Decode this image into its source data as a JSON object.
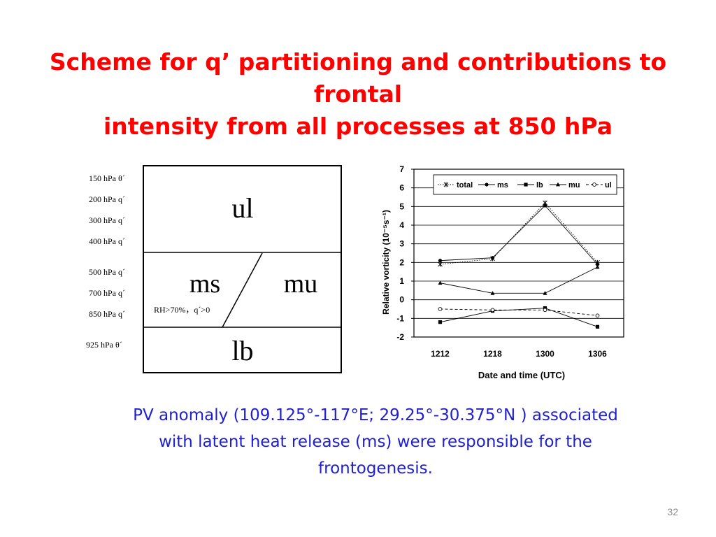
{
  "title": {
    "line1": "Scheme for q’ partitioning and contributions to frontal",
    "line2": "intensity from all processes at 850 hPa"
  },
  "scheme": {
    "levels_upper": [
      "150 hPa θ´",
      "200 hPa q´",
      "300 hPa q´",
      "400 hPa q´"
    ],
    "levels_middle": [
      "500 hPa q´",
      "700 hPa q´",
      "850 hPa q´"
    ],
    "levels_lower": [
      "925 hPa θ´"
    ],
    "ul_label": "ul",
    "ms_label": "ms",
    "mu_label": "mu",
    "lb_label": "lb",
    "condition": "RH>70%，q´>0"
  },
  "chart_data": {
    "type": "line",
    "categories": [
      "1212",
      "1218",
      "1300",
      "1306"
    ],
    "series": [
      {
        "name": "total",
        "values": [
          1.9,
          2.2,
          5.2,
          2.0
        ],
        "marker": "x-star",
        "line": "dotted"
      },
      {
        "name": "ms",
        "values": [
          2.1,
          2.25,
          5.05,
          1.9
        ],
        "marker": "filled-circle",
        "line": "solid"
      },
      {
        "name": "lb",
        "values": [
          -1.2,
          -0.6,
          -0.45,
          -1.45
        ],
        "marker": "filled-square",
        "line": "solid"
      },
      {
        "name": "mu",
        "values": [
          0.9,
          0.35,
          0.35,
          1.75
        ],
        "marker": "filled-triangle",
        "line": "solid"
      },
      {
        "name": "ul",
        "values": [
          -0.5,
          -0.55,
          -0.55,
          -0.85
        ],
        "marker": "open-circle",
        "line": "dashed"
      }
    ],
    "xlabel": "Date and time (UTC)",
    "ylabel": "Relative vorticity (10⁻⁵s⁻¹)",
    "ylim": [
      -2,
      7
    ],
    "yticks": [
      "-2",
      "-1",
      "0",
      "1",
      "2",
      "3",
      "4",
      "5",
      "6",
      "7"
    ],
    "grid": true,
    "legend_position": "top"
  },
  "caption": {
    "line1": "PV anomaly (109.125°-117°E; 29.25°-30.375°N ) associated",
    "line2": "with latent heat release (ms) were responsible for the",
    "line3": "frontogenesis."
  },
  "page_number": "32"
}
